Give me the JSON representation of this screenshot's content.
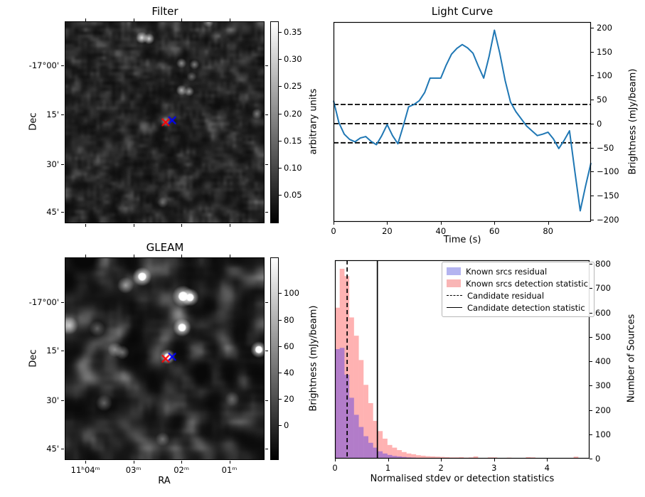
{
  "figure": {
    "background": "#ffffff",
    "accent_line_color": "#1f77b4",
    "marker_colors": {
      "candidate": "#ff0000",
      "catalogue": "#0000ff"
    }
  },
  "chart_data": [
    {
      "type": "heatmap",
      "panel": "top-left",
      "title": "Filter",
      "xlabel": "",
      "ylabel": "Dec",
      "xtick_labels": [],
      "xtick_pos": [
        0.104,
        0.344,
        0.584,
        0.824
      ],
      "ytick_labels": [
        "-17°00'",
        "15'",
        "30'",
        "45'"
      ],
      "ytick_pos": [
        0.22,
        0.461,
        0.706,
        0.943
      ],
      "colorbar": {
        "label": "arbitrary units",
        "ticks": [
          0.35,
          0.3,
          0.25,
          0.2,
          0.15,
          0.1,
          0.05
        ],
        "vmin": 0.0,
        "vmax": 0.37
      },
      "markers": [
        {
          "shape": "x",
          "color": "#ff0000",
          "x": 0.505,
          "y": 0.5
        },
        {
          "shape": "x",
          "color": "#0000ff",
          "x": 0.538,
          "y": 0.49
        }
      ],
      "bright_sources": [
        {
          "x": 0.385,
          "y": 0.078,
          "amp": 0.85,
          "r": 0.03
        },
        {
          "x": 0.421,
          "y": 0.083,
          "amp": 0.8,
          "r": 0.028
        },
        {
          "x": 0.72,
          "y": 0.0,
          "amp": 0.5,
          "r": 0.028
        },
        {
          "x": 0.585,
          "y": 0.205,
          "amp": 0.5,
          "r": 0.026
        },
        {
          "x": 0.65,
          "y": 0.212,
          "amp": 0.45,
          "r": 0.025
        },
        {
          "x": 0.636,
          "y": 0.272,
          "amp": 0.35,
          "r": 0.025
        },
        {
          "x": 0.585,
          "y": 0.34,
          "amp": 0.65,
          "r": 0.027
        },
        {
          "x": 0.624,
          "y": 0.346,
          "amp": 0.55,
          "r": 0.025
        },
        {
          "x": 0.505,
          "y": 0.497,
          "amp": 0.5,
          "r": 0.026
        },
        {
          "x": 0.965,
          "y": 0.458,
          "amp": 0.45,
          "r": 0.027
        },
        {
          "x": 0.49,
          "y": 0.9,
          "amp": 0.3,
          "r": 0.028
        }
      ]
    },
    {
      "type": "line",
      "panel": "top-right",
      "title": "Light Curve",
      "xlabel": "Time (s)",
      "ylabel": "Brightness (mJy/beam)",
      "line_color": "#1f77b4",
      "xlim": [
        0,
        96
      ],
      "ylim": [
        -205,
        212
      ],
      "xticks": [
        0,
        20,
        40,
        60,
        80
      ],
      "yticks": [
        200,
        150,
        100,
        50,
        0,
        -50,
        -100,
        -150,
        -200
      ],
      "hline_values": [
        40,
        0,
        -40
      ],
      "x": [
        0,
        2,
        4,
        6,
        8,
        10,
        12,
        14,
        16,
        18,
        20,
        22,
        24,
        26,
        28,
        30,
        32,
        34,
        36,
        38,
        40,
        42,
        44,
        46,
        48,
        50,
        52,
        54,
        56,
        58,
        60,
        62,
        64,
        66,
        68,
        70,
        72,
        74,
        76,
        78,
        80,
        82,
        84,
        86,
        88,
        90,
        92,
        94,
        96
      ],
      "y": [
        48,
        2,
        -22,
        -33,
        -38,
        -30,
        -27,
        -37,
        -44,
        -25,
        -2,
        -25,
        -42,
        -5,
        35,
        40,
        48,
        65,
        95,
        95,
        95,
        122,
        145,
        157,
        165,
        158,
        147,
        120,
        95,
        140,
        195,
        147,
        90,
        45,
        25,
        10,
        -5,
        -15,
        -25,
        -22,
        -18,
        -32,
        -52,
        -35,
        -15,
        -100,
        -182,
        -130,
        -82
      ]
    },
    {
      "type": "heatmap",
      "panel": "bottom-left",
      "title": "GLEAM",
      "xlabel": "RA",
      "ylabel": "Dec",
      "xtick_labels": [
        "11ʰ04ᵐ",
        "03ᵐ",
        "02ᵐ",
        "01ᵐ"
      ],
      "xtick_pos": [
        0.104,
        0.344,
        0.584,
        0.824
      ],
      "ytick_labels": [
        "-17°00'",
        "15'",
        "30'",
        "45'"
      ],
      "ytick_pos": [
        0.22,
        0.461,
        0.706,
        0.943
      ],
      "colorbar": {
        "label": "Brightness (mJy/beam)",
        "ticks": [
          100,
          80,
          60,
          40,
          20,
          0
        ],
        "vmin": -25,
        "vmax": 127
      },
      "markers": [
        {
          "shape": "x",
          "color": "#ff0000",
          "x": 0.505,
          "y": 0.5
        },
        {
          "shape": "x",
          "color": "#0000ff",
          "x": 0.538,
          "y": 0.49
        }
      ],
      "bright_sources": [
        {
          "x": 0.387,
          "y": 0.092,
          "amp": 1.1,
          "r": 0.048
        },
        {
          "x": 0.303,
          "y": 0.135,
          "amp": 0.55,
          "r": 0.042
        },
        {
          "x": 0.593,
          "y": 0.19,
          "amp": 1.2,
          "r": 0.055
        },
        {
          "x": 0.628,
          "y": 0.195,
          "amp": 1.0,
          "r": 0.045
        },
        {
          "x": 0.588,
          "y": 0.345,
          "amp": 1.0,
          "r": 0.046
        },
        {
          "x": 0.02,
          "y": 0.335,
          "amp": 0.6,
          "r": 0.045
        },
        {
          "x": 0.16,
          "y": 0.35,
          "amp": 0.35,
          "r": 0.04
        },
        {
          "x": 0.25,
          "y": 0.455,
          "amp": 0.45,
          "r": 0.038
        },
        {
          "x": 0.287,
          "y": 0.468,
          "amp": 0.42,
          "r": 0.036
        },
        {
          "x": 0.515,
          "y": 0.49,
          "amp": 0.95,
          "r": 0.038
        },
        {
          "x": 0.975,
          "y": 0.455,
          "amp": 1.0,
          "r": 0.042
        },
        {
          "x": 0.195,
          "y": 0.72,
          "amp": 0.35,
          "r": 0.042
        },
        {
          "x": 0.49,
          "y": 0.9,
          "amp": 0.35,
          "r": 0.036
        },
        {
          "x": 0.84,
          "y": 0.7,
          "amp": 0.25,
          "r": 0.038
        }
      ]
    },
    {
      "type": "bar",
      "panel": "bottom-right",
      "title": "",
      "xlabel": "Normalised stdev or detection statistics",
      "ylabel": "Number of Sources",
      "xlim": [
        0,
        4.8
      ],
      "ylim": [
        0,
        815
      ],
      "xticks": [
        0,
        1,
        2,
        3,
        4
      ],
      "yticks": [
        800,
        700,
        600,
        500,
        400,
        300,
        200,
        100,
        0
      ],
      "bin_start": 0,
      "bin_width": 0.09,
      "series": [
        {
          "name": "Known srcs detection statistic",
          "color": "#ff0000",
          "alpha": 0.3,
          "legend_swatch": "#f9b5b5",
          "values": [
            620,
            780,
            750,
            580,
            505,
            405,
            303,
            228,
            155,
            113,
            82,
            56,
            45,
            35,
            27,
            21,
            18,
            14,
            12,
            10,
            9,
            8,
            7,
            6,
            5,
            5,
            6,
            4,
            5,
            9,
            3,
            2,
            5,
            5,
            2,
            2,
            4,
            1,
            1,
            2,
            6,
            5,
            1,
            1,
            2,
            1,
            1,
            1,
            1,
            0,
            8
          ]
        },
        {
          "name": "Known srcs residual",
          "color": "#0000ff",
          "alpha": 0.3,
          "legend_swatch": "#b4b4f0",
          "values": [
            450,
            455,
            345,
            250,
            180,
            130,
            92,
            65,
            45,
            30,
            21,
            15,
            11,
            9,
            7,
            5,
            4,
            3,
            3,
            2,
            2,
            2,
            1,
            1,
            1,
            1,
            1,
            1,
            0,
            1,
            1,
            0,
            0,
            0,
            0,
            0,
            0,
            0,
            0,
            0,
            0,
            0,
            0,
            0,
            0,
            0,
            0,
            0,
            0,
            0,
            0
          ]
        }
      ],
      "vlines": [
        {
          "name": "Candidate residual",
          "style": "dashed",
          "x": 0.23,
          "color": "#000000"
        },
        {
          "name": "Candidate detection statistic",
          "style": "solid",
          "x": 0.8,
          "color": "#000000"
        }
      ],
      "legend": [
        {
          "label": "Known srcs residual",
          "swatch": "patch",
          "color": "#b4b4f0"
        },
        {
          "label": "Known srcs detection statistic",
          "swatch": "patch",
          "color": "#f9b5b5"
        },
        {
          "label": "Candidate residual",
          "swatch": "dashed-line",
          "color": "#000000"
        },
        {
          "label": "Candidate detection statistic",
          "swatch": "solid-line",
          "color": "#000000"
        }
      ]
    }
  ]
}
